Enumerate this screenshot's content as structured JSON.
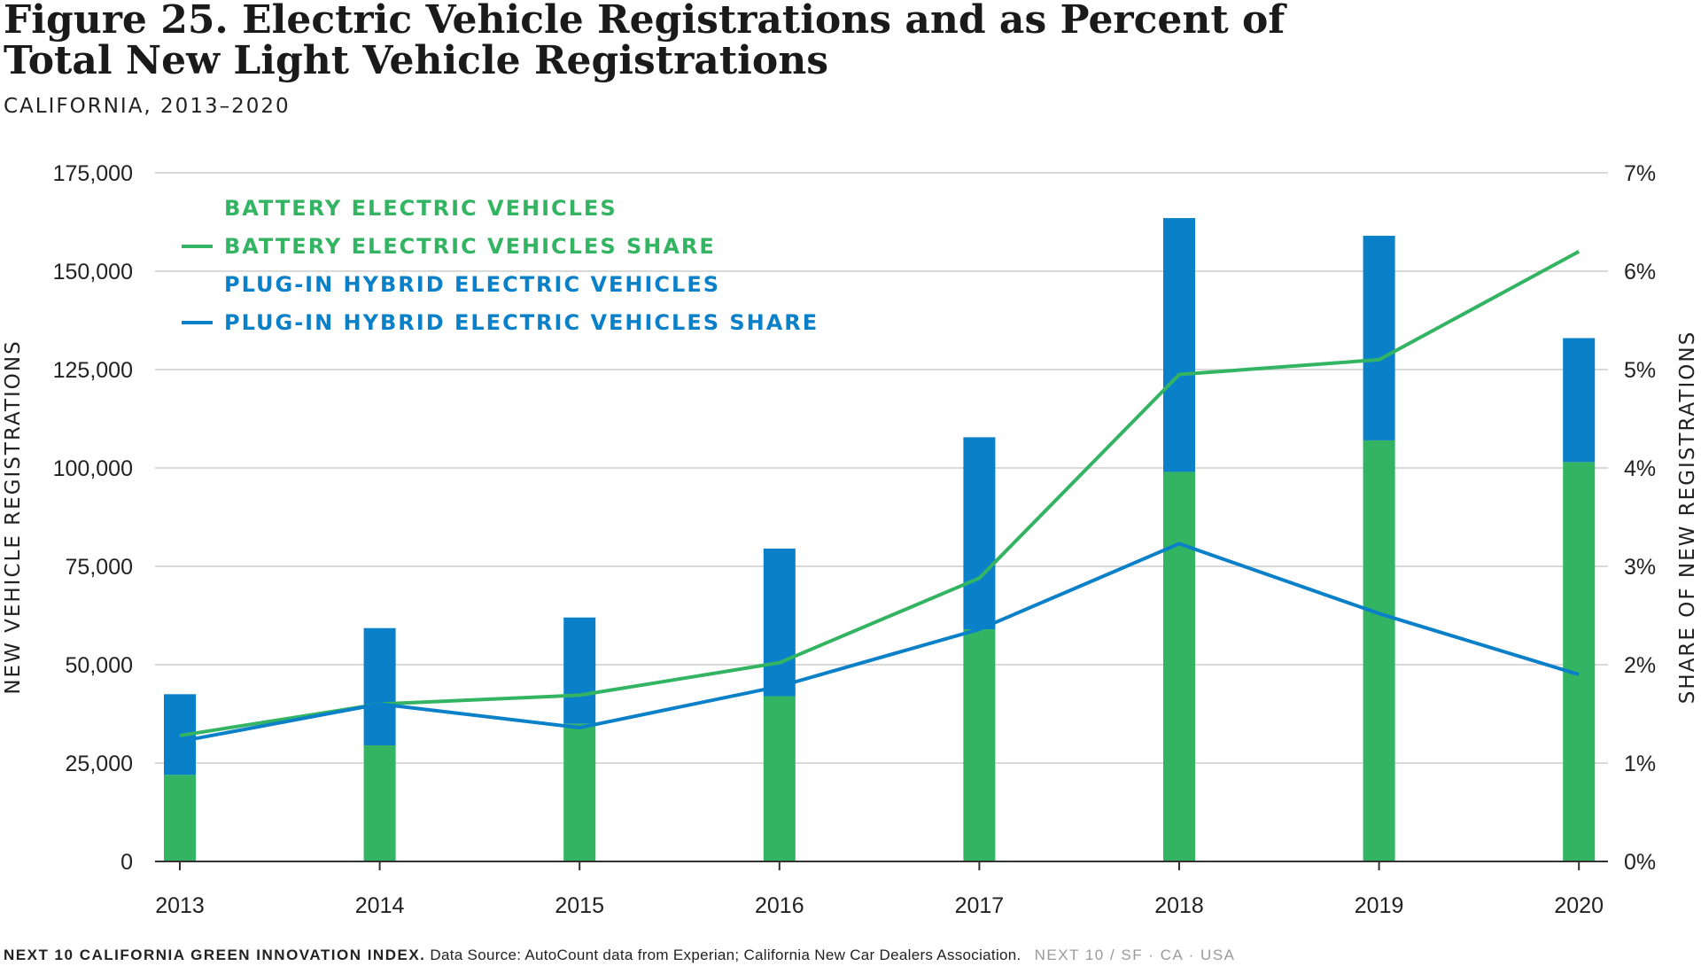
{
  "title_line1": "Figure 25. Electric Vehicle Registrations and as Percent of",
  "title_line2": "Total New Light Vehicle Registrations",
  "subtitle": "CALIFORNIA, 2013–2020",
  "footer": {
    "brand": "NEXT 10 CALIFORNIA GREEN INNOVATION INDEX.",
    "source": "Data Source: AutoCount data from Experian; California New Car Dealers Association.",
    "org": "NEXT 10  /  SF · CA · USA"
  },
  "colors": {
    "bev": "#33b462",
    "phev": "#0a80c9",
    "grid": "#d9d9d9",
    "axis": "#333333",
    "text": "#222222"
  },
  "chart_data": {
    "type": "bar",
    "stacked": true,
    "categories": [
      "2013",
      "2014",
      "2015",
      "2016",
      "2017",
      "2018",
      "2019",
      "2020"
    ],
    "series": [
      {
        "name": "BATTERY ELECTRIC VEHICLES",
        "values": [
          22000,
          29500,
          35000,
          42000,
          59000,
          99000,
          107000,
          101500
        ]
      },
      {
        "name": "PLUG-IN HYBRID ELECTRIC VEHICLES",
        "values": [
          20500,
          29800,
          27000,
          37500,
          48800,
          64500,
          52000,
          31500
        ]
      }
    ],
    "lines": [
      {
        "name": "BATTERY ELECTRIC VEHICLES SHARE",
        "axis": "right",
        "values": [
          1.28,
          1.6,
          1.69,
          2.02,
          2.88,
          4.95,
          5.1,
          6.2
        ]
      },
      {
        "name": "PLUG-IN HYBRID ELECTRIC VEHICLES SHARE",
        "axis": "right",
        "values": [
          1.22,
          1.6,
          1.36,
          1.78,
          2.36,
          3.23,
          2.52,
          1.9
        ]
      }
    ],
    "ylabel": "NEW VEHICLE REGISTRATIONS",
    "y2label": "SHARE OF NEW REGISTRATIONS",
    "ylim": [
      0,
      175000
    ],
    "y2lim": [
      0,
      7
    ],
    "yticks": [
      "0",
      "25,000",
      "50,000",
      "75,000",
      "100,000",
      "125,000",
      "150,000",
      "175,000"
    ],
    "y2ticks": [
      "0%",
      "1%",
      "2%",
      "3%",
      "4%",
      "5%",
      "6%",
      "7%"
    ],
    "grid": true,
    "legend_position": "top-left"
  }
}
